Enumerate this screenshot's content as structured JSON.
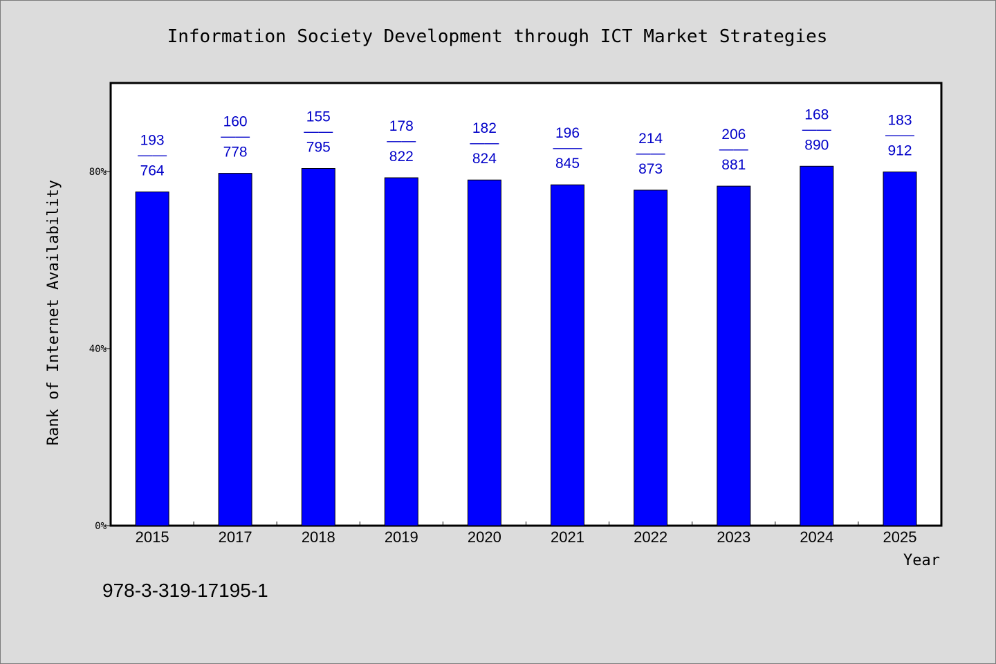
{
  "chart_data": {
    "type": "bar",
    "title": "Information Society Development through ICT Market Strategies",
    "xlabel": "Year",
    "ylabel": "Rank of Internet Availability",
    "categories": [
      "2015",
      "2017",
      "2018",
      "2019",
      "2020",
      "2021",
      "2022",
      "2023",
      "2024",
      "2025"
    ],
    "series": [
      {
        "values": [
          75.4,
          79.6,
          80.7,
          78.6,
          78.1,
          77.0,
          75.8,
          76.7,
          81.2,
          79.9
        ]
      }
    ],
    "labels_top": [
      "193",
      "160",
      "155",
      "178",
      "182",
      "196",
      "214",
      "206",
      "168",
      "183"
    ],
    "labels_bottom": [
      "764",
      "778",
      "795",
      "822",
      "824",
      "845",
      "873",
      "881",
      "890",
      "912"
    ],
    "label_separator": "——",
    "yticks": [
      "0%",
      "40%",
      "80%"
    ],
    "ytick_values": [
      0,
      40,
      80
    ],
    "ylim": [
      0,
      100
    ],
    "grid": false,
    "bar_color": "#0000ff",
    "label_color": "#0000c8",
    "background": "#dcdcdc",
    "plot_background": "#ffffff"
  },
  "footer": {
    "code": "978-3-319-17195-1"
  }
}
